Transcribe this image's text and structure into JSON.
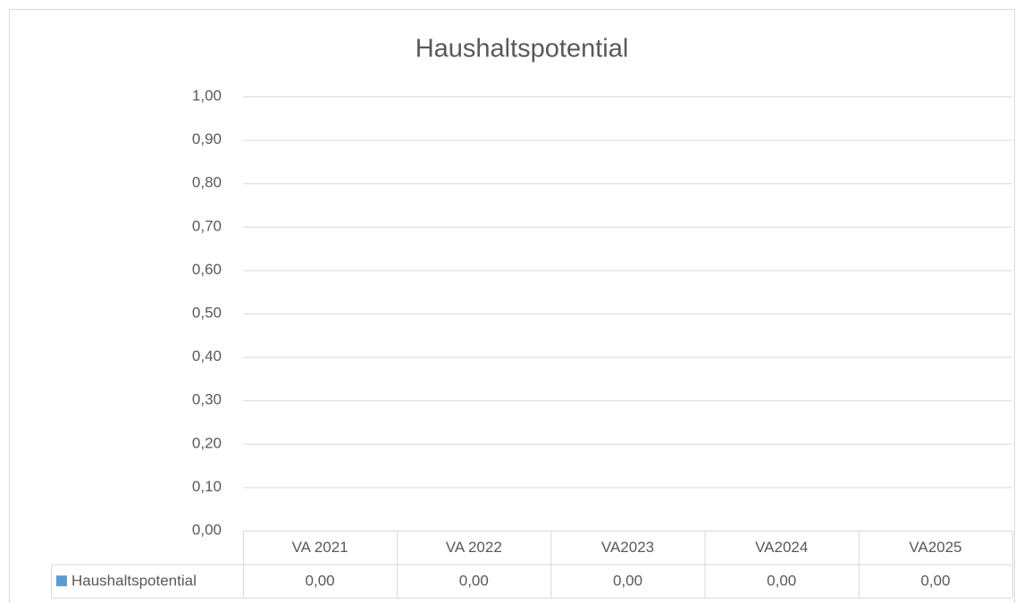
{
  "chart_data": {
    "type": "bar",
    "title": "Haushaltspotential",
    "categories": [
      "VA 2021",
      "VA 2022",
      "VA2023",
      "VA2024",
      "VA2025"
    ],
    "series": [
      {
        "name": "Haushaltspotential",
        "color": "#5b9bd5",
        "values": [
          0,
          0,
          0,
          0,
          0
        ],
        "value_labels": [
          "0,00",
          "0,00",
          "0,00",
          "0,00",
          "0,00"
        ]
      }
    ],
    "ylim": [
      0,
      1
    ],
    "yticks": [
      {
        "value": 0,
        "label": "0,00"
      },
      {
        "value": 0.1,
        "label": "0,10"
      },
      {
        "value": 0.2,
        "label": "0,20"
      },
      {
        "value": 0.3,
        "label": "0,30"
      },
      {
        "value": 0.4,
        "label": "0,40"
      },
      {
        "value": 0.5,
        "label": "0,50"
      },
      {
        "value": 0.6,
        "label": "0,60"
      },
      {
        "value": 0.7,
        "label": "0,70"
      },
      {
        "value": 0.8,
        "label": "0,80"
      },
      {
        "value": 0.9,
        "label": "0,90"
      },
      {
        "value": 1,
        "label": "1,00"
      }
    ],
    "grid": true,
    "data_table": true
  }
}
